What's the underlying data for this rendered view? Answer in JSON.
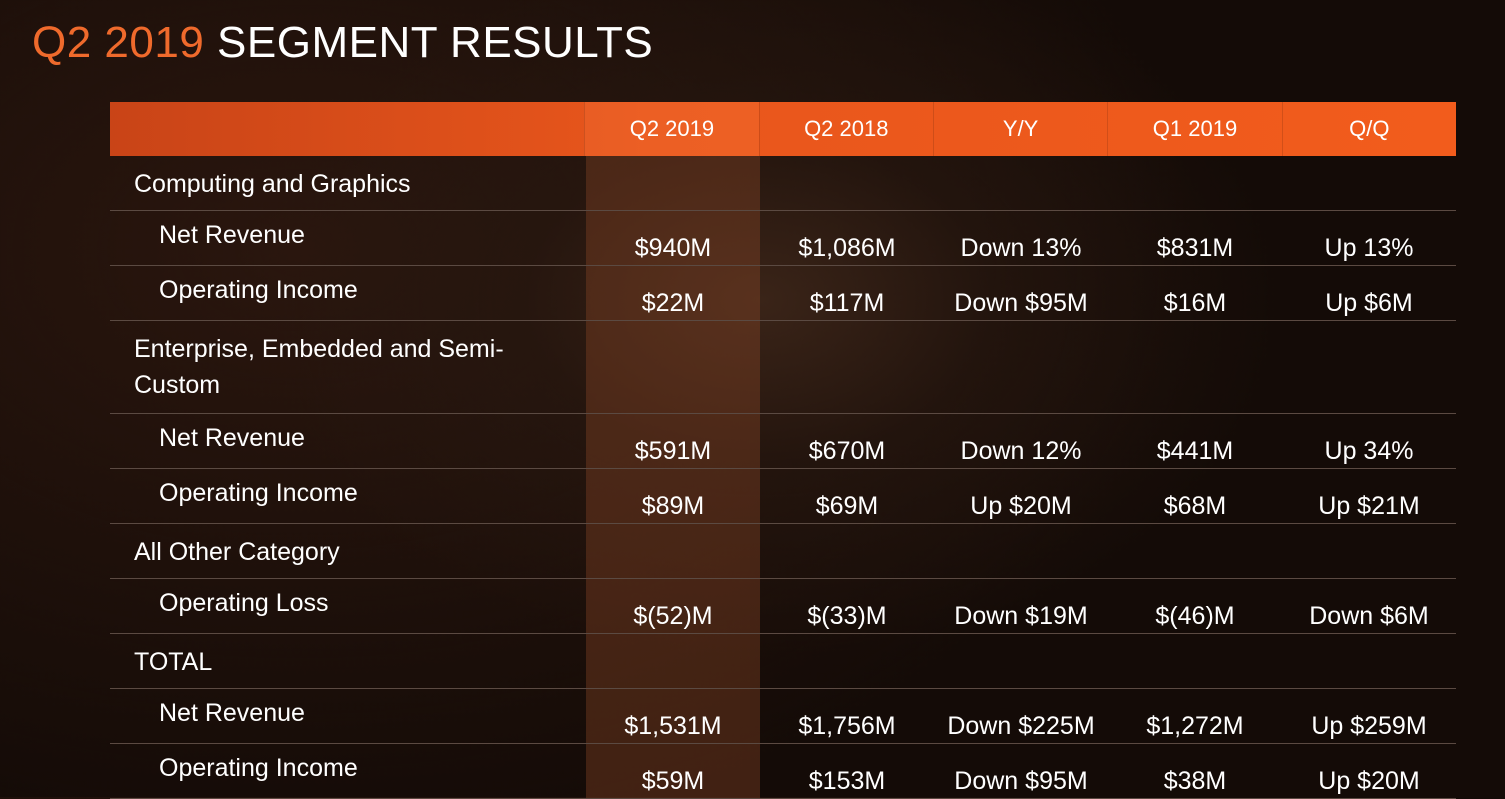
{
  "title": {
    "accent": "Q2 2019",
    "rest": "SEGMENT RESULTS"
  },
  "columns": [
    "Q2 2019",
    "Q2 2018",
    "Y/Y",
    "Q1 2019",
    "Q/Q"
  ],
  "sections": [
    {
      "label": "Computing and Graphics",
      "rows": [
        {
          "label": "Net Revenue",
          "values": [
            "$940M",
            "$1,086M",
            "Down 13%",
            "$831M",
            "Up 13%"
          ]
        },
        {
          "label": "Operating Income",
          "values": [
            "$22M",
            "$117M",
            "Down $95M",
            "$16M",
            "Up $6M"
          ]
        }
      ]
    },
    {
      "label_line1": "Enterprise, Embedded and Semi-",
      "label_line2": "Custom",
      "rows": [
        {
          "label": "Net Revenue",
          "values": [
            "$591M",
            "$670M",
            "Down 12%",
            "$441M",
            "Up 34%"
          ]
        },
        {
          "label": "Operating Income",
          "values": [
            "$89M",
            "$69M",
            "Up $20M",
            "$68M",
            "Up $21M"
          ]
        }
      ]
    },
    {
      "label": "All Other Category",
      "rows": [
        {
          "label": "Operating Loss",
          "values": [
            "$(52)M",
            "$(33)M",
            "Down $19M",
            "$(46)M",
            "Down $6M"
          ]
        }
      ]
    },
    {
      "label": "TOTAL",
      "rows": [
        {
          "label": "Net Revenue",
          "values": [
            "$1,531M",
            "$1,756M",
            "Down $225M",
            "$1,272M",
            "Up $259M"
          ]
        },
        {
          "label": "Operating Income",
          "values": [
            "$59M",
            "$153M",
            "Down $95M",
            "$38M",
            "Up $20M"
          ]
        }
      ]
    }
  ],
  "colors": {
    "accent": "#ef6a2c",
    "header": "#f25c1c",
    "highlight_column": "#5a2e1c"
  }
}
